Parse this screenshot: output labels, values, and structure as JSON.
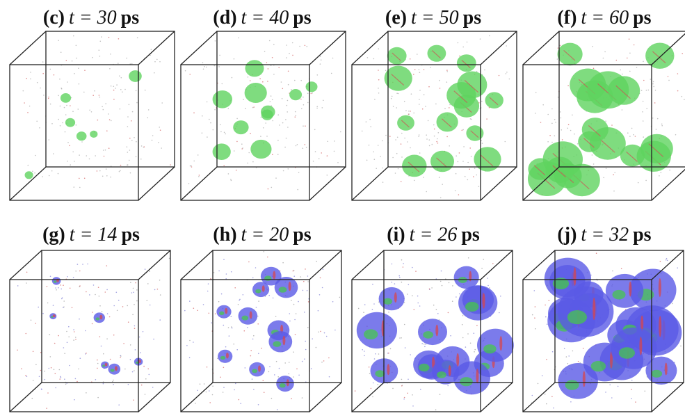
{
  "panels": [
    {
      "label": "(c)",
      "time": "t = 30",
      "unit": "ps"
    },
    {
      "label": "(d)",
      "time": "t = 40",
      "unit": "ps"
    },
    {
      "label": "(e)",
      "time": "t = 50",
      "unit": "ps"
    },
    {
      "label": "(f)",
      "time": "t = 60",
      "unit": "ps"
    },
    {
      "label": "(g)",
      "time": "t = 14",
      "unit": "ps"
    },
    {
      "label": "(h)",
      "time": "t = 20",
      "unit": "ps"
    },
    {
      "label": "(i)",
      "time": "t = 26",
      "unit": "ps"
    },
    {
      "label": "(j)",
      "time": "t = 32",
      "unit": "ps"
    }
  ]
}
